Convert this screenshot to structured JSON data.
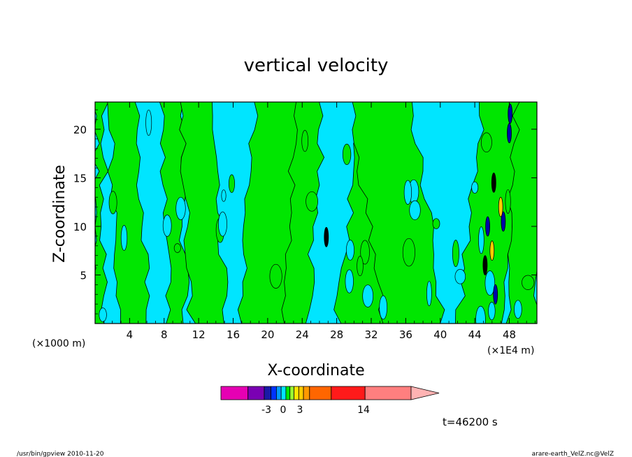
{
  "colors": {
    "background": "#ffffff",
    "axis": "#000000",
    "contour_line": "#000000",
    "low_band": "#00e5ff",
    "high_band": "#00e600"
  },
  "chart_data": {
    "type": "heatmap",
    "title": "vertical velocity",
    "xlabel": "X-coordinate",
    "ylabel": "Z-coordinate",
    "x_scale_note": "(×1000 m)",
    "x_unit_note": "(×1E4 m)",
    "x_ticks": [
      "4",
      "8",
      "12",
      "16",
      "20",
      "24",
      "28",
      "32",
      "36",
      "40",
      "44",
      "48"
    ],
    "x_tick_values": [
      4,
      8,
      12,
      16,
      20,
      24,
      28,
      32,
      36,
      40,
      44,
      48
    ],
    "y_ticks": [
      "5",
      "10",
      "15",
      "20"
    ],
    "y_tick_values": [
      5,
      10,
      15,
      20
    ],
    "xlim": [
      0,
      51.2
    ],
    "ylim": [
      0,
      22.8
    ],
    "time_label": "t=46200 s",
    "colorbar": {
      "labels": [
        "-3",
        "0",
        "3",
        "14"
      ],
      "label_values": [
        -3,
        0,
        3,
        14
      ],
      "segments": [
        {
          "color": "#e600b3",
          "weight": 40
        },
        {
          "color": "#7a00b3",
          "weight": 24
        },
        {
          "color": "#1a1aa6",
          "weight": 10
        },
        {
          "color": "#0033ff",
          "weight": 8
        },
        {
          "color": "#0099ff",
          "weight": 7
        },
        {
          "color": "#00e5ff",
          "weight": 7
        },
        {
          "color": "#00e600",
          "weight": 6
        },
        {
          "color": "#99ff33",
          "weight": 6
        },
        {
          "color": "#ffe600",
          "weight": 7
        },
        {
          "color": "#ffcc00",
          "weight": 7
        },
        {
          "color": "#ff9900",
          "weight": 9
        },
        {
          "color": "#ff6600",
          "weight": 32
        },
        {
          "color": "#ff1a1a",
          "weight": 50
        },
        {
          "color": "#ff7f7f",
          "weight": 68
        }
      ],
      "arrow_color": "#ffb3b3"
    },
    "green_bands": [
      {
        "x0": 0.0,
        "x1": 1.0,
        "lean": 0.0
      },
      {
        "x0": 3.0,
        "x1": 6.2,
        "lean": -1.5
      },
      {
        "x0": 8.5,
        "x1": 10.5,
        "lean": -0.6
      },
      {
        "x0": 11.2,
        "x1": 15.2,
        "lean": -1.2
      },
      {
        "x0": 17.0,
        "x1": 24.0,
        "lean": 1.5
      },
      {
        "x0": 21.5,
        "x1": 24.5,
        "lean": 2.0
      },
      {
        "x0": 28.0,
        "x1": 33.5,
        "lean": 3.0
      },
      {
        "x0": 33.5,
        "x1": 40.5,
        "lean": -4.0
      },
      {
        "x0": 42.0,
        "x1": 47.0,
        "lean": 3.0
      },
      {
        "x0": 47.8,
        "x1": 51.2,
        "lean": 1.0
      }
    ],
    "dark_spots": [
      {
        "x": 26.8,
        "y": 8.9,
        "color": "#000000"
      },
      {
        "x": 45.5,
        "y": 10.0,
        "color": "#0000aa"
      },
      {
        "x": 47.3,
        "y": 10.5,
        "color": "#0000aa"
      },
      {
        "x": 48.0,
        "y": 19.6,
        "color": "#0000aa"
      },
      {
        "x": 48.1,
        "y": 21.6,
        "color": "#0000aa"
      },
      {
        "x": 46.4,
        "y": 3.0,
        "color": "#0000aa"
      },
      {
        "x": 45.2,
        "y": 6.0,
        "color": "#000000"
      },
      {
        "x": 46.0,
        "y": 7.5,
        "color": "#ffcc00"
      },
      {
        "x": 47.0,
        "y": 12.0,
        "color": "#ffcc00"
      },
      {
        "x": 46.2,
        "y": 14.5,
        "color": "#000000"
      }
    ]
  },
  "footer": {
    "left": "/usr/bin/gpview   2010-11-20",
    "right": "arare-earth_VelZ.nc@VelZ"
  }
}
